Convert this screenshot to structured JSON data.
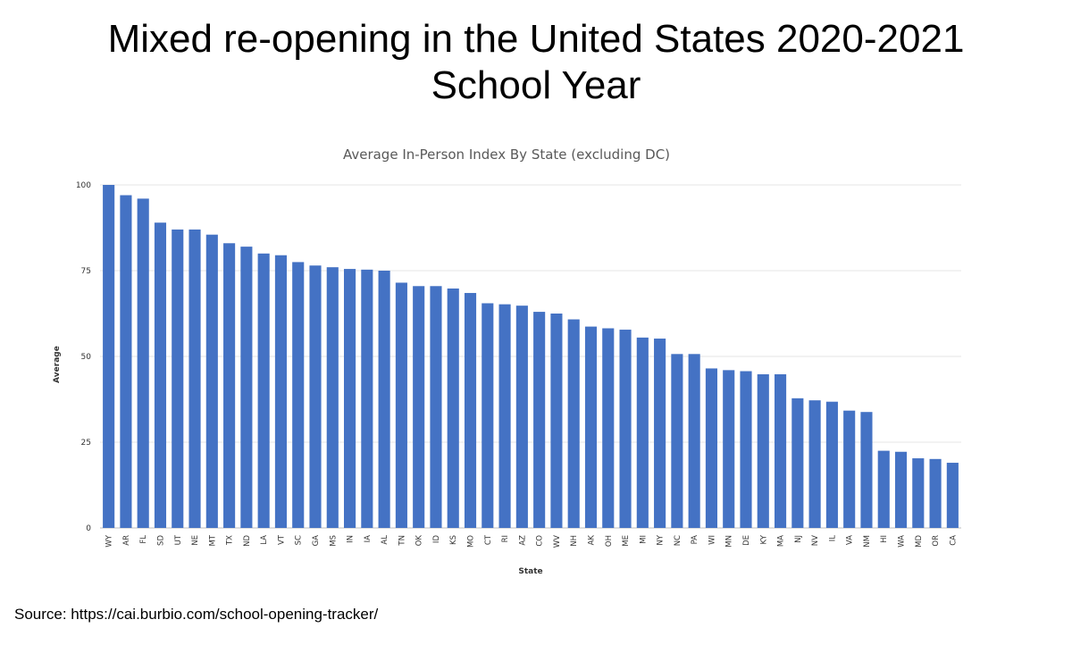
{
  "slide": {
    "title_line1": "Mixed re-opening in the United States 2020-2021",
    "title_line2": "School Year",
    "source": "Source: https://cai.burbio.com/school-opening-tracker/"
  },
  "chart_data": {
    "type": "bar",
    "title": "Average In-Person Index By State (excluding DC)",
    "xlabel": "State",
    "ylabel": "Average",
    "ylim": [
      0,
      100
    ],
    "yticks": [
      0,
      25,
      50,
      75,
      100
    ],
    "grid": true,
    "bar_color": "#4472c4",
    "categories": [
      "WY",
      "AR",
      "FL",
      "SD",
      "UT",
      "NE",
      "MT",
      "TX",
      "ND",
      "LA",
      "VT",
      "SC",
      "GA",
      "MS",
      "IN",
      "IA",
      "AL",
      "TN",
      "OK",
      "ID",
      "KS",
      "MO",
      "CT",
      "RI",
      "AZ",
      "CO",
      "WV",
      "NH",
      "AK",
      "OH",
      "ME",
      "MI",
      "NY",
      "NC",
      "PA",
      "WI",
      "MN",
      "DE",
      "KY",
      "MA",
      "NJ",
      "NV",
      "IL",
      "VA",
      "NM",
      "HI",
      "WA",
      "MD",
      "OR",
      "CA"
    ],
    "values": [
      100,
      97,
      96,
      89,
      87,
      87,
      85.5,
      83,
      82,
      80,
      79.5,
      77.5,
      76.5,
      76,
      75.5,
      75.3,
      75,
      71.5,
      70.5,
      70.5,
      69.8,
      68.5,
      65.5,
      65.2,
      64.8,
      63,
      62.5,
      60.8,
      58.7,
      58.2,
      57.8,
      55.5,
      55.2,
      50.7,
      50.7,
      46.5,
      46,
      45.7,
      44.8,
      44.8,
      37.8,
      37.2,
      36.8,
      34.2,
      33.8,
      22.5,
      22.2,
      20.3,
      20.1,
      19
    ]
  }
}
